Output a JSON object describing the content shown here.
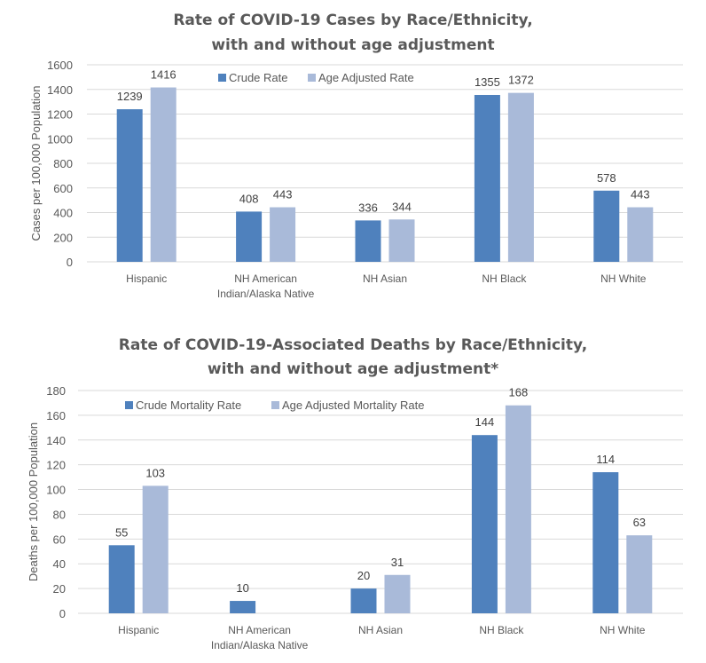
{
  "colors": {
    "crude": "#4f81bd",
    "adjusted": "#a9bad9",
    "grid": "#d9d9d9"
  },
  "chart_data": [
    {
      "type": "bar",
      "title": [
        "Rate of COVID-19 Cases by Race/Ethnicity,",
        "with and without age adjustment"
      ],
      "ylabel": "Cases per 100,000 Population",
      "xlabel": "",
      "ylim": [
        0,
        1600
      ],
      "ytick_step": 200,
      "grid": true,
      "legend": "top-center",
      "categories": [
        [
          "Hispanic"
        ],
        [
          "NH American",
          "Indian/Alaska Native"
        ],
        [
          "NH Asian"
        ],
        [
          "NH Black"
        ],
        [
          "NH White"
        ]
      ],
      "series": [
        {
          "name": "Crude Rate",
          "values": [
            1239,
            408,
            336,
            1355,
            578
          ]
        },
        {
          "name": "Age Adjusted Rate",
          "values": [
            1416,
            443,
            344,
            1372,
            443
          ]
        }
      ]
    },
    {
      "type": "bar",
      "title": [
        "Rate of COVID-19-Associated Deaths by Race/Ethnicity,",
        "with and without age adjustment*"
      ],
      "ylabel": "Deaths per 100,000 Population",
      "xlabel": "",
      "ylim": [
        0,
        180
      ],
      "ytick_step": 20,
      "grid": true,
      "legend": "top-left",
      "categories": [
        [
          "Hispanic"
        ],
        [
          "NH American",
          "Indian/Alaska Native"
        ],
        [
          "NH Asian"
        ],
        [
          "NH Black"
        ],
        [
          "NH White"
        ]
      ],
      "series": [
        {
          "name": "Crude Mortality Rate",
          "values": [
            55,
            10,
            20,
            144,
            114
          ]
        },
        {
          "name": "Age Adjusted Mortality Rate",
          "values": [
            103,
            null,
            31,
            168,
            63
          ]
        }
      ]
    }
  ]
}
